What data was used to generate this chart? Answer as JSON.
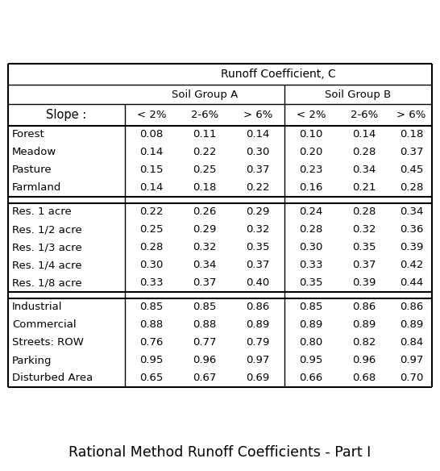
{
  "title": "Rational Method Runoff Coefficients - Part I",
  "header1": "Runoff Coefficient, C",
  "header2a": "Soil Group A",
  "header2b": "Soil Group B",
  "slope_label": "Slope :",
  "slope_cols": [
    "< 2%",
    "2-6%",
    "> 6%",
    "< 2%",
    "2-6%",
    "> 6%"
  ],
  "rows": [
    [
      "Forest",
      "0.08",
      "0.11",
      "0.14",
      "0.10",
      "0.14",
      "0.18"
    ],
    [
      "Meadow",
      "0.14",
      "0.22",
      "0.30",
      "0.20",
      "0.28",
      "0.37"
    ],
    [
      "Pasture",
      "0.15",
      "0.25",
      "0.37",
      "0.23",
      "0.34",
      "0.45"
    ],
    [
      "Farmland",
      "0.14",
      "0.18",
      "0.22",
      "0.16",
      "0.21",
      "0.28"
    ],
    [
      "Res. 1 acre",
      "0.22",
      "0.26",
      "0.29",
      "0.24",
      "0.28",
      "0.34"
    ],
    [
      "Res. 1/2 acre",
      "0.25",
      "0.29",
      "0.32",
      "0.28",
      "0.32",
      "0.36"
    ],
    [
      "Res. 1/3 acre",
      "0.28",
      "0.32",
      "0.35",
      "0.30",
      "0.35",
      "0.39"
    ],
    [
      "Res. 1/4 acre",
      "0.30",
      "0.34",
      "0.37",
      "0.33",
      "0.37",
      "0.42"
    ],
    [
      "Res. 1/8 acre",
      "0.33",
      "0.37",
      "0.40",
      "0.35",
      "0.39",
      "0.44"
    ],
    [
      "Industrial",
      "0.85",
      "0.85",
      "0.86",
      "0.85",
      "0.86",
      "0.86"
    ],
    [
      "Commercial",
      "0.88",
      "0.88",
      "0.89",
      "0.89",
      "0.89",
      "0.89"
    ],
    [
      "Streets: ROW",
      "0.76",
      "0.77",
      "0.79",
      "0.80",
      "0.82",
      "0.84"
    ],
    [
      "Parking",
      "0.95",
      "0.96",
      "0.97",
      "0.95",
      "0.96",
      "0.97"
    ],
    [
      "Disturbed Area",
      "0.65",
      "0.67",
      "0.69",
      "0.66",
      "0.68",
      "0.70"
    ]
  ],
  "group_sizes": [
    4,
    5,
    5
  ],
  "bg_color": "#ffffff",
  "text_color": "#000000",
  "line_color": "#000000",
  "font_size": 9.5,
  "title_font_size": 12.5
}
